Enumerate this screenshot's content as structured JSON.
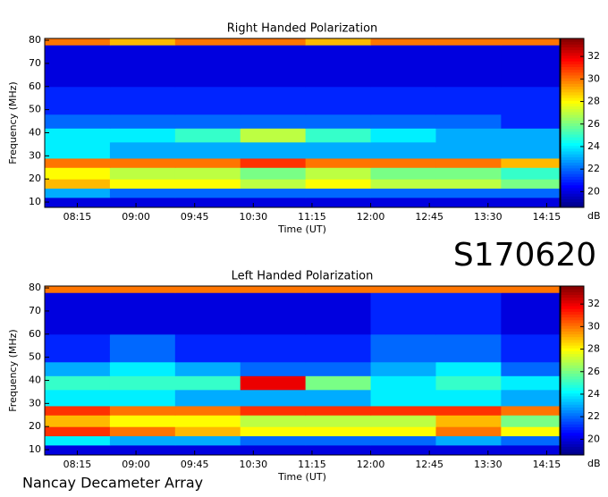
{
  "label": "S170620",
  "credit": "Nancay Decameter Array",
  "chart_data": [
    {
      "type": "heatmap",
      "title": "Right Handed Polarization",
      "xlabel": "Time (UT)",
      "ylabel": "Frequency (MHz)",
      "colorbar_label": "dB",
      "xlim": [
        470,
        865
      ],
      "xticks": [
        {
          "value": 495,
          "label": "08:15"
        },
        {
          "value": 540,
          "label": "09:00"
        },
        {
          "value": 585,
          "label": "09:45"
        },
        {
          "value": 630,
          "label": "10:30"
        },
        {
          "value": 675,
          "label": "11:15"
        },
        {
          "value": 720,
          "label": "12:00"
        },
        {
          "value": 765,
          "label": "12:45"
        },
        {
          "value": 810,
          "label": "13:30"
        },
        {
          "value": 855,
          "label": "14:15"
        }
      ],
      "ylim": [
        7.7,
        80.8
      ],
      "yticks": [
        10,
        20,
        30,
        40,
        50,
        60,
        70,
        80
      ],
      "zlim": [
        18.6,
        33.6
      ],
      "zticks": [
        20,
        22,
        24,
        26,
        28,
        30,
        32
      ],
      "xbins": [
        470,
        520,
        570,
        620,
        670,
        720,
        770,
        820,
        865
      ],
      "ybins": [
        7.7,
        12,
        16,
        20,
        25,
        29,
        36,
        42,
        48,
        60,
        78,
        80.8
      ],
      "z": [
        [
          20,
          20,
          20,
          20,
          20,
          20,
          20,
          20
        ],
        [
          23,
          22,
          22,
          22,
          22,
          22,
          22,
          22
        ],
        [
          29,
          28,
          28,
          27,
          28,
          27,
          27,
          26
        ],
        [
          28,
          27,
          27,
          26,
          27,
          26,
          26,
          25
        ],
        [
          30,
          30,
          30,
          31,
          30,
          30,
          30,
          29
        ],
        [
          24,
          23,
          23,
          23,
          23,
          23,
          23,
          23
        ],
        [
          24,
          24,
          25,
          27,
          25,
          24,
          23,
          23
        ],
        [
          22,
          22,
          22,
          22,
          22,
          22,
          22,
          21
        ],
        [
          21,
          21,
          21,
          21,
          21,
          21,
          21,
          21
        ],
        [
          20,
          20,
          20,
          20,
          20,
          20,
          20,
          20
        ],
        [
          30,
          29,
          30,
          30,
          29,
          30,
          30,
          30
        ]
      ]
    },
    {
      "type": "heatmap",
      "title": "Left Handed Polarization",
      "xlabel": "Time (UT)",
      "ylabel": "Frequency (MHz)",
      "colorbar_label": "dB",
      "xlim": [
        470,
        865
      ],
      "xticks": [
        {
          "value": 495,
          "label": "08:15"
        },
        {
          "value": 540,
          "label": "09:00"
        },
        {
          "value": 585,
          "label": "09:45"
        },
        {
          "value": 630,
          "label": "10:30"
        },
        {
          "value": 675,
          "label": "11:15"
        },
        {
          "value": 720,
          "label": "12:00"
        },
        {
          "value": 765,
          "label": "12:45"
        },
        {
          "value": 810,
          "label": "13:30"
        },
        {
          "value": 855,
          "label": "14:15"
        }
      ],
      "ylim": [
        7.7,
        80.8
      ],
      "yticks": [
        10,
        20,
        30,
        40,
        50,
        60,
        70,
        80
      ],
      "zlim": [
        18.6,
        33.6
      ],
      "zticks": [
        20,
        22,
        24,
        26,
        28,
        30,
        32
      ],
      "xbins": [
        470,
        520,
        570,
        620,
        670,
        720,
        770,
        820,
        865
      ],
      "ybins": [
        7.7,
        12,
        16,
        20,
        25,
        29,
        36,
        42,
        48,
        60,
        78,
        80.8
      ],
      "z": [
        [
          20,
          20,
          20,
          20,
          20,
          20,
          20,
          20
        ],
        [
          24,
          23,
          23,
          22,
          22,
          22,
          23,
          22
        ],
        [
          31,
          30,
          29,
          28,
          28,
          28,
          30,
          28
        ],
        [
          29,
          28,
          28,
          27,
          27,
          27,
          29,
          26
        ],
        [
          31,
          30,
          30,
          31,
          31,
          31,
          31,
          30
        ],
        [
          24,
          24,
          23,
          23,
          23,
          24,
          24,
          23
        ],
        [
          25,
          25,
          25,
          32,
          26,
          24,
          25,
          24
        ],
        [
          23,
          24,
          23,
          22,
          22,
          23,
          24,
          22
        ],
        [
          21,
          22,
          21,
          21,
          21,
          22,
          22,
          21
        ],
        [
          20,
          20,
          20,
          20,
          20,
          21,
          21,
          20
        ],
        [
          30,
          30,
          30,
          30,
          30,
          30,
          30,
          30
        ]
      ]
    }
  ]
}
